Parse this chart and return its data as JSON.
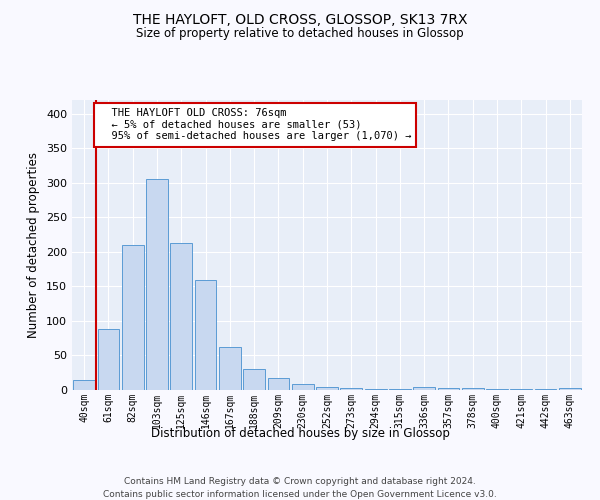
{
  "title": "THE HAYLOFT, OLD CROSS, GLOSSOP, SK13 7RX",
  "subtitle": "Size of property relative to detached houses in Glossop",
  "xlabel": "Distribution of detached houses by size in Glossop",
  "ylabel": "Number of detached properties",
  "bar_color": "#c8d8f0",
  "bar_edge_color": "#5b9bd5",
  "background_color": "#e8eef8",
  "grid_color": "#ffffff",
  "categories": [
    "40sqm",
    "61sqm",
    "82sqm",
    "103sqm",
    "125sqm",
    "146sqm",
    "167sqm",
    "188sqm",
    "209sqm",
    "230sqm",
    "252sqm",
    "273sqm",
    "294sqm",
    "315sqm",
    "336sqm",
    "357sqm",
    "378sqm",
    "400sqm",
    "421sqm",
    "442sqm",
    "463sqm"
  ],
  "values": [
    15,
    88,
    210,
    305,
    213,
    160,
    63,
    31,
    18,
    9,
    5,
    3,
    2,
    2,
    4,
    3,
    3,
    1,
    2,
    1,
    3
  ],
  "annotation_text": "  THE HAYLOFT OLD CROSS: 76sqm\n  ← 5% of detached houses are smaller (53)\n  95% of semi-detached houses are larger (1,070) →",
  "annotation_box_color": "#ffffff",
  "annotation_box_edge": "#cc0000",
  "vline_x": 0.5,
  "ylim": [
    0,
    420
  ],
  "yticks": [
    0,
    50,
    100,
    150,
    200,
    250,
    300,
    350,
    400
  ],
  "footer_line1": "Contains HM Land Registry data © Crown copyright and database right 2024.",
  "footer_line2": "Contains public sector information licensed under the Open Government Licence v3.0.",
  "fig_bg": "#f9f9ff"
}
